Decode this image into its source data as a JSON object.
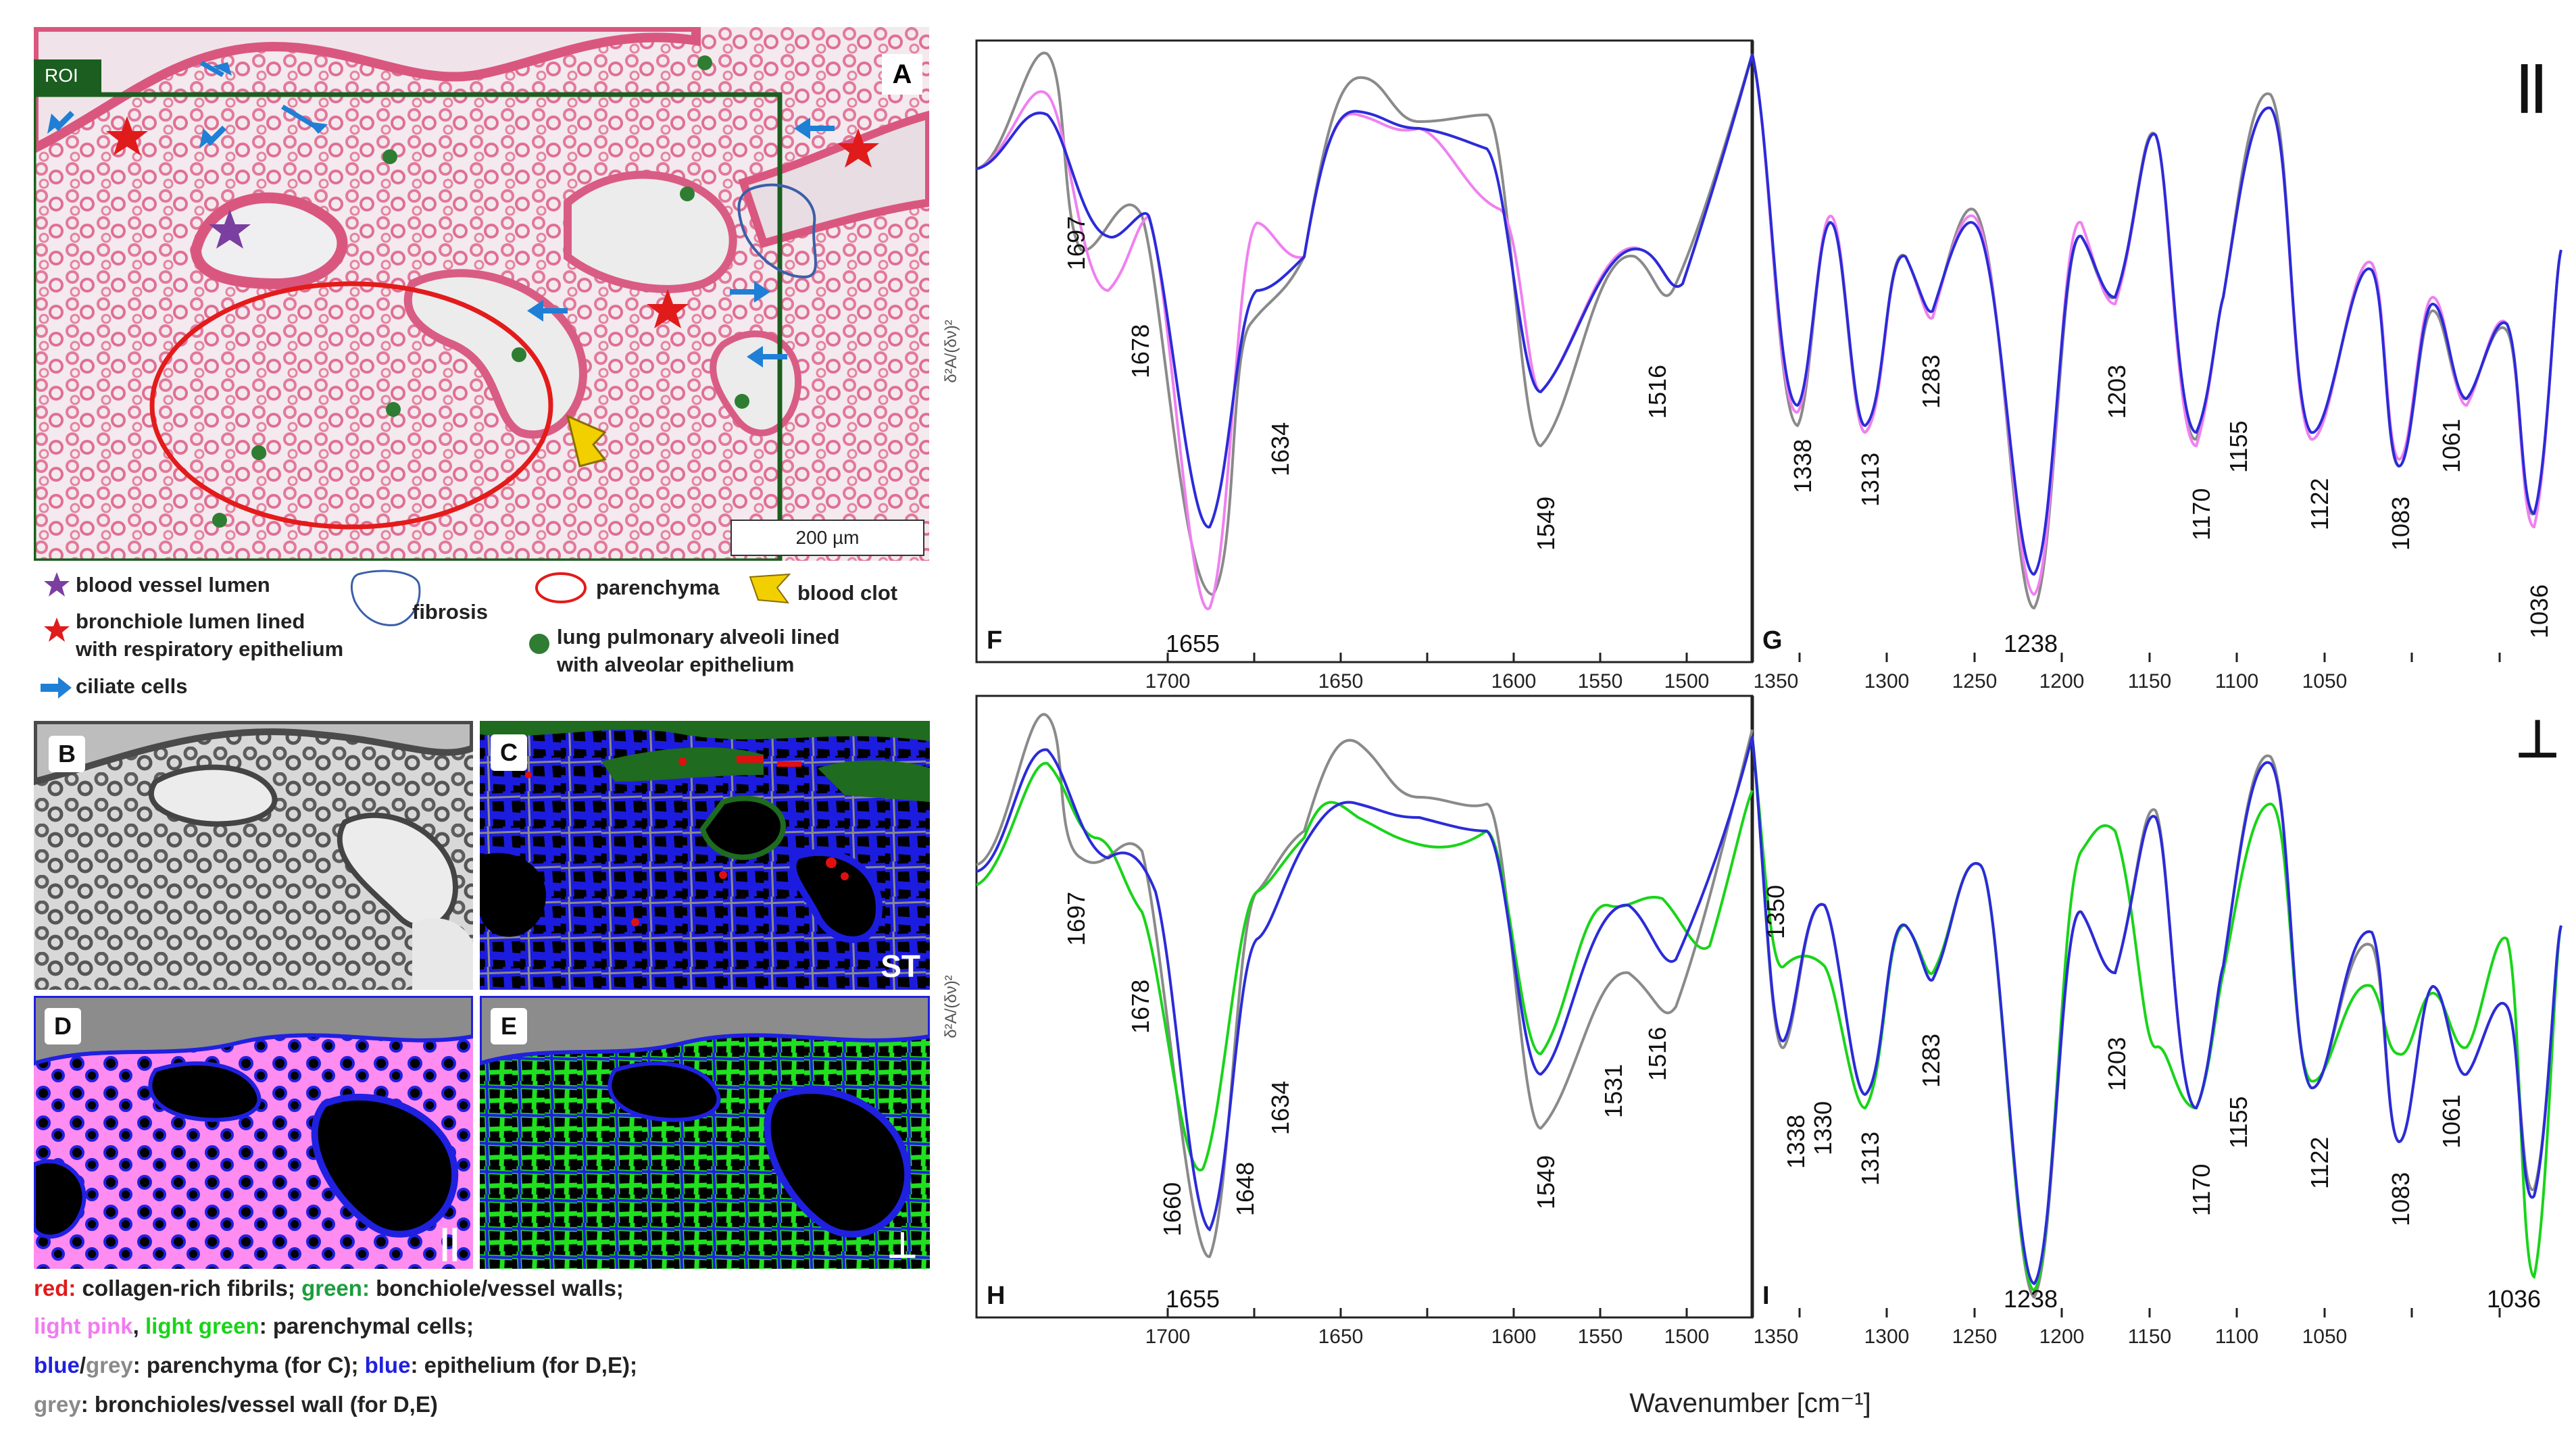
{
  "histology": {
    "panel_label": "A",
    "roi_label": "ROI",
    "scale_bar": "200 µm"
  },
  "legend": {
    "blood_vessel": "blood vessel lumen",
    "bronchiole_line1": "bronchiole lumen lined",
    "bronchiole_line2": "with respiratory epithelium",
    "ciliate": "ciliate cells",
    "fibrosis": "fibrosis",
    "parenchyma": "parenchyma",
    "blood_clot": "blood clot",
    "alveoli_line1": "lung pulmonary alveoli lined",
    "alveoli_line2": "with alveolar epithelium",
    "colors": {
      "purple_star": "#7a3fa0",
      "red_star": "#e01b1b",
      "blue_arrow": "#1f7fd6",
      "fibrosis_outline": "#3b5fa8",
      "parenchyma_outline": "#e31b1b",
      "clot": "#f2d000",
      "alveoli_dot": "#2e7d32"
    }
  },
  "image_panels": {
    "B": {
      "label": "B"
    },
    "C": {
      "label": "C",
      "tag": "ST"
    },
    "D": {
      "label": "D",
      "tag": "||"
    },
    "E": {
      "label": "E",
      "tag": "⊥"
    }
  },
  "caption": {
    "line1": {
      "red": "red:",
      "red_rest": " collagen-rich fibrils; ",
      "green": "green:",
      "green_rest": " bonchiole/vessel walls;"
    },
    "line2": {
      "pink": "light pink",
      "sep": ", ",
      "lgreen": "light green",
      "rest": ": parenchymal cells;"
    },
    "line3": {
      "blue": "blue",
      "slash": "/",
      "grey": "grey",
      "rest1": ": parenchyma (for C); ",
      "blue2": "blue",
      "rest2": ": epithelium (for D,E);"
    },
    "line4": {
      "grey": "grey",
      "rest": ": bronchioles/vessel wall (for D,E)"
    }
  },
  "spectra": {
    "ylabel": "δ²A/(δν)²",
    "xlabel": "Wavenumber [cm⁻¹]",
    "parallel_symbol": "||",
    "perp_symbol": "⊥",
    "colors": {
      "grey": "#8a8a8a",
      "pink": "#f080f0",
      "blue": "#2b2bd9",
      "green": "#19d419"
    },
    "F": {
      "label": "F",
      "ticks": [
        "1700",
        "1650",
        "1600",
        "1550",
        "1500"
      ],
      "peaks": [
        "1697",
        "1678",
        "1634",
        "1655",
        "1549",
        "1516"
      ]
    },
    "G": {
      "label": "G",
      "ticks": [
        "1350",
        "1300",
        "1250",
        "1200",
        "1150",
        "1100",
        "1050"
      ],
      "peaks": [
        "1338",
        "1313",
        "1283",
        "1238",
        "1203",
        "1170",
        "1155",
        "1122",
        "1083",
        "1061",
        "1036"
      ]
    },
    "H": {
      "label": "H",
      "ticks": [
        "1700",
        "1650",
        "1600",
        "1550",
        "1500"
      ],
      "peaks": [
        "1697",
        "1678",
        "1634",
        "1660",
        "1648",
        "1655",
        "1549",
        "1531",
        "1516"
      ]
    },
    "I": {
      "label": "I",
      "ticks": [
        "1350",
        "1300",
        "1250",
        "1200",
        "1150",
        "1100",
        "1050"
      ],
      "peaks": [
        "1350",
        "1338",
        "1330",
        "1313",
        "1283",
        "1238",
        "1203",
        "1170",
        "1155",
        "1122",
        "1083",
        "1061",
        "1036"
      ]
    }
  }
}
